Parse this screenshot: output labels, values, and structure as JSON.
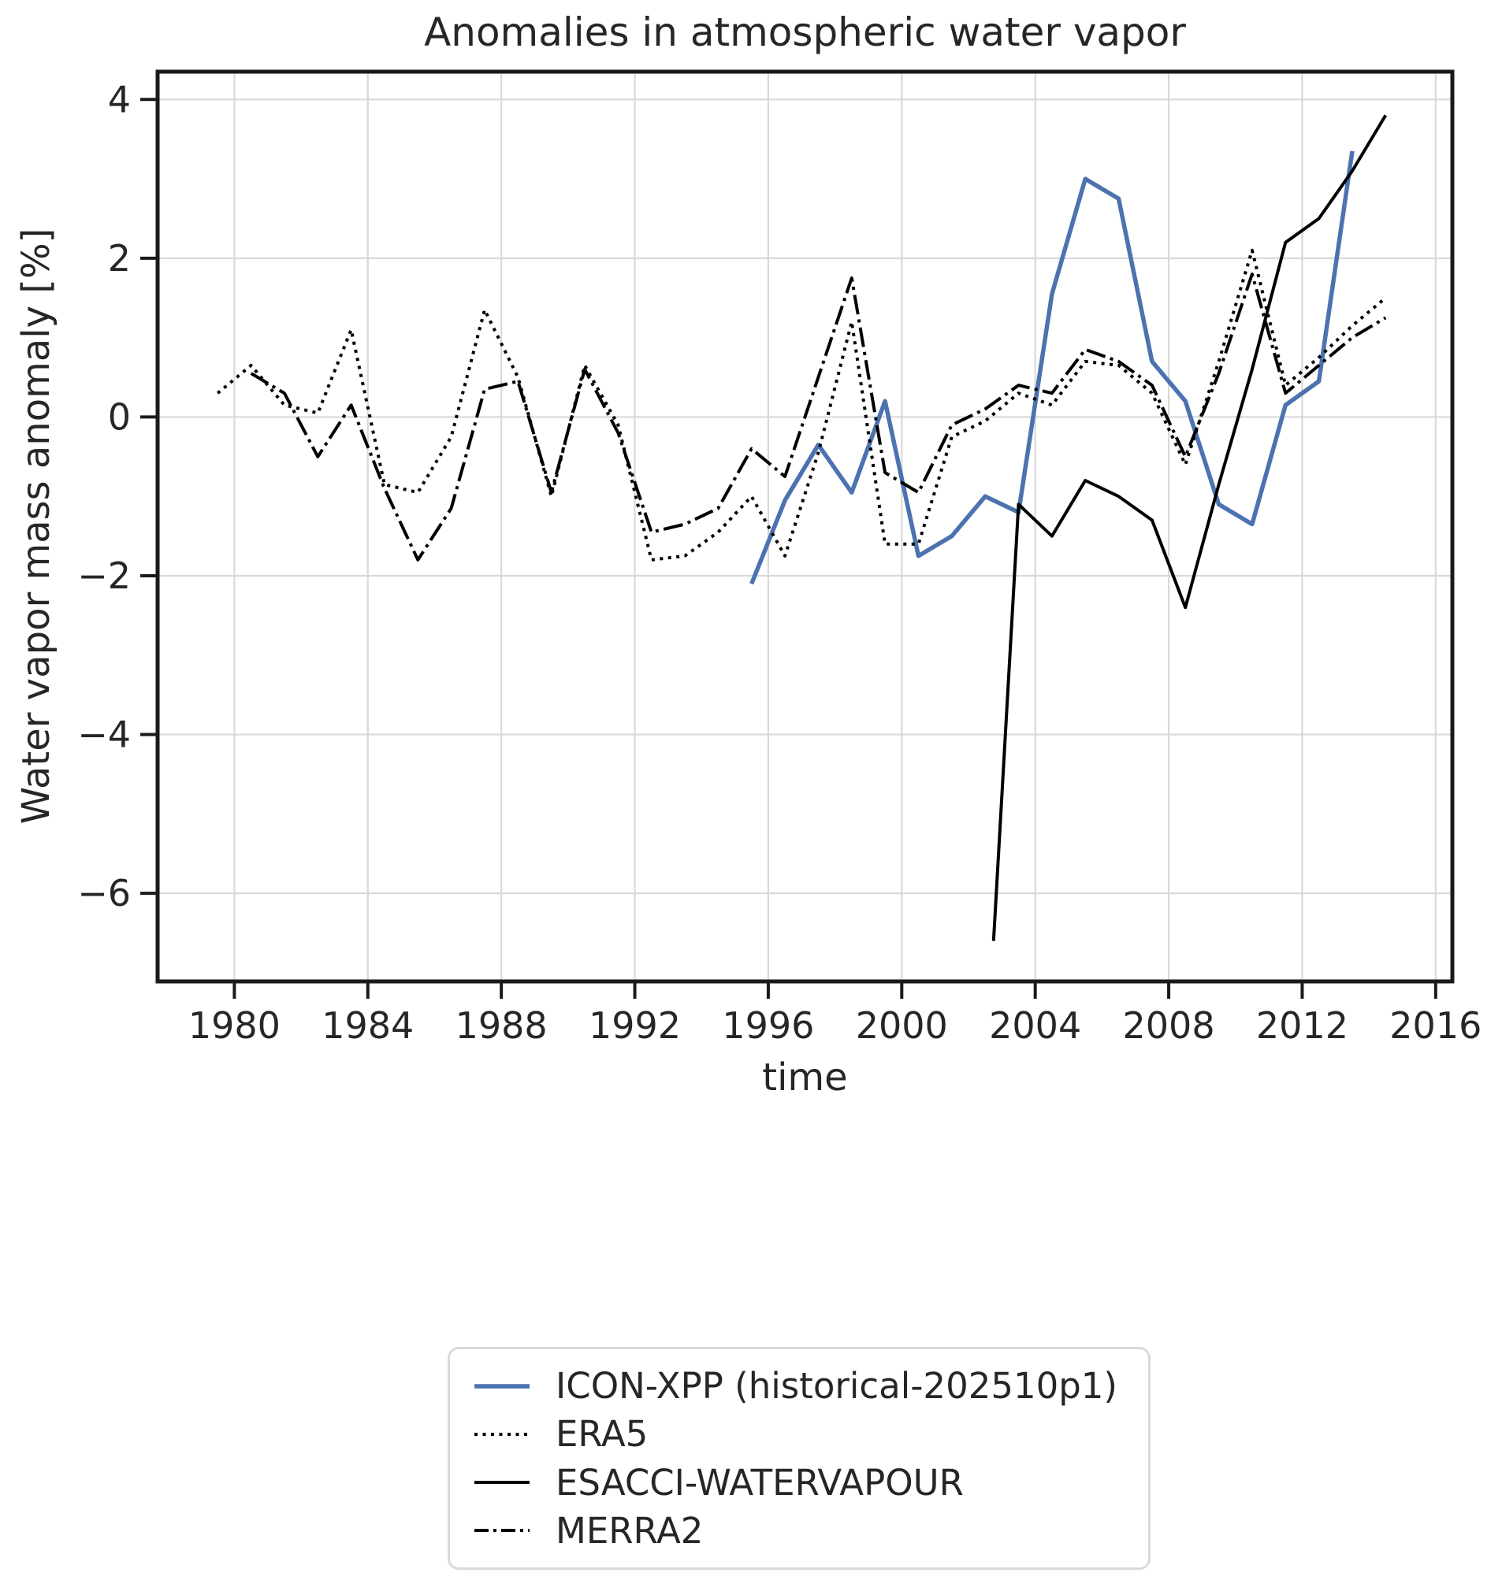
{
  "chart_data": {
    "type": "line",
    "title": "Anomalies in atmospheric water vapor",
    "xlabel": "time",
    "ylabel": "Water vapor mass anomaly [%]",
    "xlim": [
      1977.7,
      2016.5
    ],
    "ylim": [
      -7.11,
      4.35
    ],
    "xticks": [
      1980,
      1984,
      1988,
      1992,
      1996,
      2000,
      2004,
      2008,
      2012,
      2016
    ],
    "yticks": [
      4,
      2,
      0,
      -2,
      -4,
      -6
    ],
    "grid": true,
    "legend_position": "below-chart",
    "series": [
      {
        "name": "ICON-XPP (historical-202510p1)",
        "color": "#4C72B0",
        "style": "solid",
        "width": 5.5,
        "x": [
          1995.5,
          1996.5,
          1997.5,
          1998.5,
          1999.5,
          2000.5,
          2001.5,
          2002.5,
          2003.5,
          2004.5,
          2005.5,
          2006.5,
          2007.5,
          2008.5,
          2009.5,
          2010.5,
          2011.5,
          2012.5,
          2013.5
        ],
        "y": [
          -2.1,
          -1.05,
          -0.35,
          -0.95,
          0.2,
          -1.75,
          -1.5,
          -1.0,
          -1.2,
          1.55,
          3.0,
          2.75,
          0.7,
          0.2,
          -1.1,
          -1.35,
          0.15,
          0.45,
          3.35
        ]
      },
      {
        "name": "ERA5",
        "color": "#000000",
        "style": "dotted",
        "width": 4,
        "x": [
          1979.5,
          1980.5,
          1981.5,
          1982.5,
          1983.5,
          1984.5,
          1985.5,
          1986.5,
          1987.5,
          1988.5,
          1989.5,
          1990.5,
          1991.5,
          1992.5,
          1993.5,
          1994.5,
          1995.5,
          1996.5,
          1997.5,
          1998.5,
          1999.5,
          2000.5,
          2001.5,
          2002.5,
          2003.5,
          2004.5,
          2005.5,
          2006.5,
          2007.5,
          2008.5,
          2009.5,
          2010.5,
          2011.5,
          2012.5,
          2013.5,
          2014.5
        ],
        "y": [
          0.3,
          0.65,
          0.15,
          0.05,
          1.1,
          -0.85,
          -0.95,
          -0.25,
          1.35,
          0.5,
          -1.0,
          0.65,
          -0.1,
          -1.8,
          -1.75,
          -1.45,
          -1.0,
          -1.75,
          -0.45,
          1.2,
          -1.6,
          -1.6,
          -0.25,
          -0.05,
          0.3,
          0.15,
          0.7,
          0.65,
          0.3,
          -0.6,
          0.7,
          2.1,
          0.4,
          0.75,
          1.15,
          1.5
        ]
      },
      {
        "name": "ESACCI-WATERVAPOUR",
        "color": "#000000",
        "style": "solid",
        "width": 4,
        "x": [
          2002.75,
          2003.5,
          2004.5,
          2005.5,
          2006.5,
          2007.5,
          2008.5,
          2009.5,
          2010.5,
          2011.5,
          2012.5,
          2013.5,
          2014.5
        ],
        "y": [
          -6.6,
          -1.1,
          -1.5,
          -0.8,
          -1.0,
          -1.3,
          -2.4,
          -0.85,
          0.6,
          2.2,
          2.5,
          3.1,
          3.8
        ]
      },
      {
        "name": "MERRA2",
        "color": "#000000",
        "style": "dashdot",
        "width": 4,
        "x": [
          1980.5,
          1981.5,
          1982.5,
          1983.5,
          1984.5,
          1985.5,
          1986.5,
          1987.5,
          1988.5,
          1989.5,
          1990.5,
          1991.5,
          1992.5,
          1993.5,
          1994.5,
          1995.5,
          1996.5,
          1997.5,
          1998.5,
          1999.5,
          2000.5,
          2001.5,
          2002.5,
          2003.5,
          2004.5,
          2005.5,
          2006.5,
          2007.5,
          2008.5,
          2009.5,
          2010.5,
          2011.5,
          2012.5,
          2013.5,
          2014.5
        ],
        "y": [
          0.55,
          0.3,
          -0.5,
          0.15,
          -0.9,
          -1.8,
          -1.15,
          0.35,
          0.45,
          -0.95,
          0.6,
          -0.2,
          -1.45,
          -1.35,
          -1.15,
          -0.4,
          -0.75,
          0.5,
          1.75,
          -0.7,
          -0.95,
          -0.1,
          0.1,
          0.4,
          0.3,
          0.85,
          0.7,
          0.4,
          -0.5,
          0.55,
          1.8,
          0.3,
          0.65,
          1.0,
          1.25
        ]
      }
    ]
  },
  "colors": {
    "background": "#ffffff",
    "grid": "#d9d9d9",
    "spine": "#1a1a1a",
    "text": "#262626",
    "accent_blue": "#4C72B0",
    "legend_border": "#d9d9d9"
  }
}
